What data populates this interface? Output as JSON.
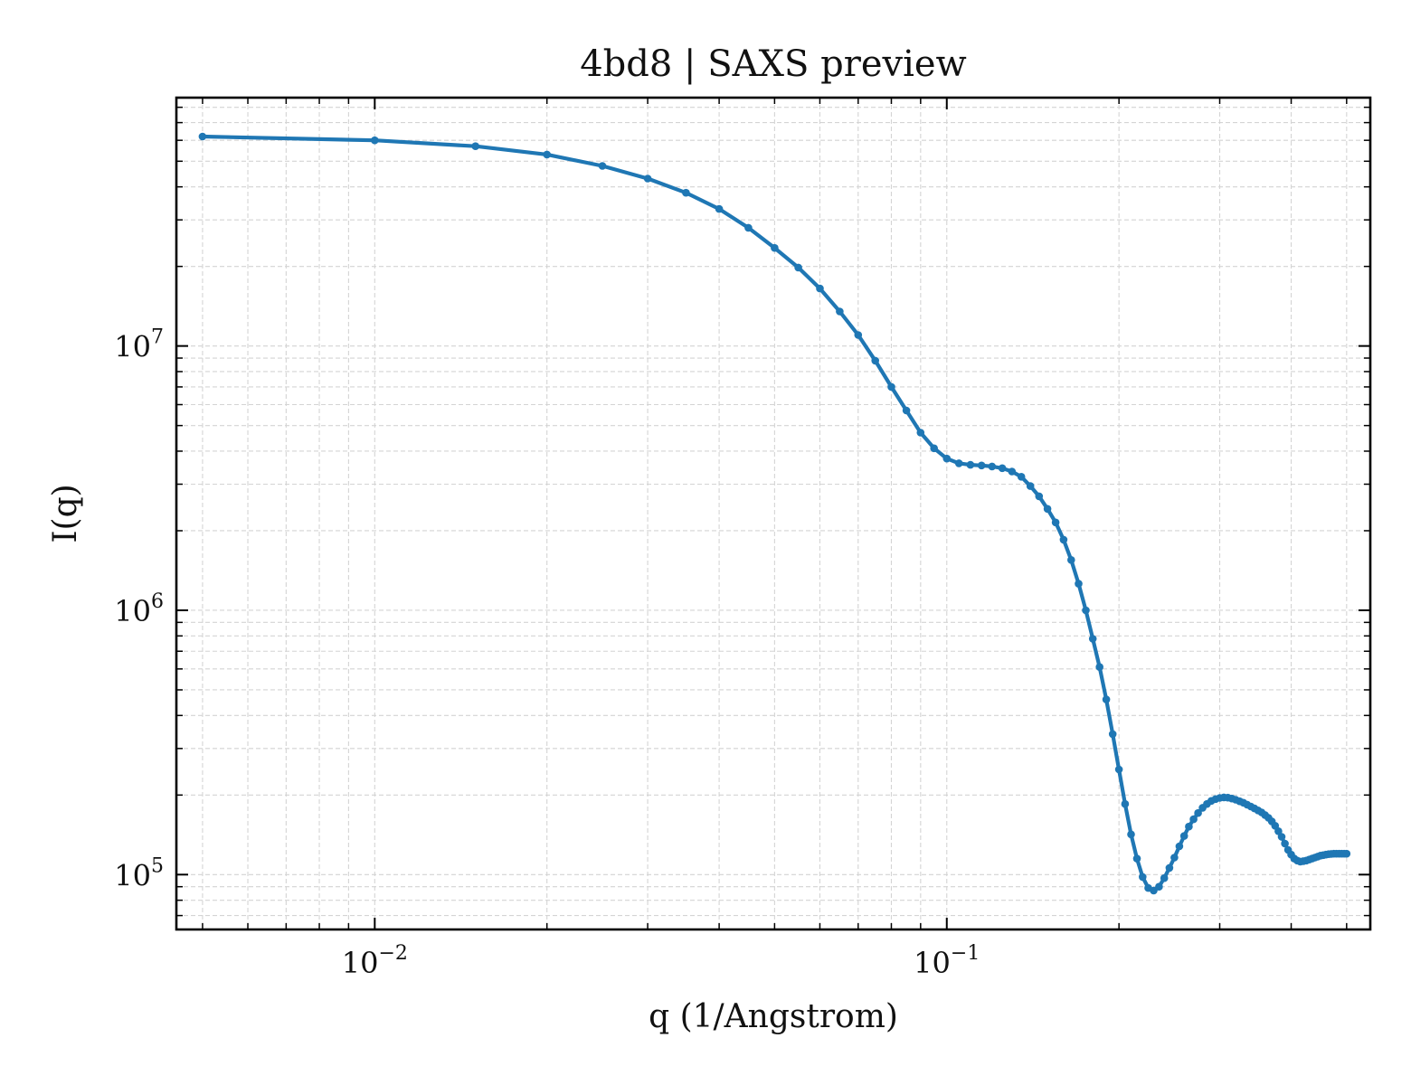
{
  "chart_data": {
    "type": "line",
    "title": "4bd8 | SAXS preview",
    "xlabel": "q (1/Angstrom)",
    "ylabel": "I(q)",
    "xscale": "log",
    "yscale": "log",
    "xlim": [
      0.0045,
      0.55
    ],
    "ylim": [
      62000,
      87000000
    ],
    "xticks": [
      {
        "value": 0.01,
        "base": "10",
        "exp": "−2"
      },
      {
        "value": 0.1,
        "base": "10",
        "exp": "−1"
      }
    ],
    "yticks": [
      {
        "value": 100000,
        "base": "10",
        "exp": "5"
      },
      {
        "value": 1000000,
        "base": "10",
        "exp": "6"
      },
      {
        "value": 10000000,
        "base": "10",
        "exp": "7"
      }
    ],
    "grid": true,
    "ticks_direction": "in",
    "series_color": "#1f77b4",
    "series": [
      {
        "x": [
          0.005,
          0.01,
          0.015,
          0.02,
          0.025,
          0.03,
          0.035,
          0.04,
          0.045,
          0.05,
          0.055,
          0.06,
          0.065,
          0.07,
          0.075,
          0.08,
          0.085,
          0.09,
          0.095,
          0.1,
          0.105,
          0.11,
          0.115,
          0.12,
          0.125,
          0.13,
          0.135,
          0.14,
          0.145,
          0.15,
          0.155,
          0.16,
          0.165,
          0.17,
          0.175,
          0.18,
          0.185,
          0.19,
          0.195,
          0.2,
          0.205,
          0.21,
          0.215,
          0.22,
          0.225,
          0.23,
          0.235,
          0.24,
          0.245,
          0.25,
          0.255,
          0.26,
          0.265,
          0.27,
          0.275,
          0.28,
          0.285,
          0.29,
          0.295,
          0.3,
          0.305,
          0.31,
          0.315,
          0.32,
          0.325,
          0.33,
          0.335,
          0.34,
          0.345,
          0.35,
          0.355,
          0.36,
          0.365,
          0.37,
          0.375,
          0.38,
          0.385,
          0.39,
          0.395,
          0.4,
          0.405,
          0.41,
          0.415,
          0.42,
          0.425,
          0.43,
          0.435,
          0.44,
          0.445,
          0.45,
          0.455,
          0.46,
          0.465,
          0.47,
          0.475,
          0.48,
          0.485,
          0.49,
          0.495,
          0.5
        ],
        "y": [
          62000000,
          60000000,
          57000000,
          53000000,
          48000000,
          43000000,
          38000000,
          33000000,
          28000000,
          23500000,
          19800000,
          16500000,
          13500000,
          11000000,
          8800000,
          7000000,
          5700000,
          4700000,
          4100000,
          3750000,
          3600000,
          3550000,
          3530000,
          3500000,
          3450000,
          3350000,
          3200000,
          2950000,
          2700000,
          2420000,
          2150000,
          1850000,
          1550000,
          1260000,
          1000000,
          780000,
          610000,
          460000,
          340000,
          250000,
          185000,
          142000,
          115000,
          98000,
          89000,
          87000,
          90000,
          97000,
          106000,
          116000,
          128000,
          140000,
          152000,
          162000,
          171000,
          179000,
          185000,
          190000,
          193000,
          195000,
          196000,
          195500,
          194000,
          192000,
          189500,
          187000,
          184000,
          181000,
          178000,
          175000,
          172000,
          168000,
          164000,
          159000,
          153000,
          146000,
          139000,
          131000,
          124000,
          119000,
          115000,
          113000,
          112000,
          112500,
          113000,
          114000,
          115000,
          116000,
          117000,
          118000,
          118500,
          119000,
          119500,
          119800,
          120000,
          120000,
          120000,
          120000,
          120000,
          120000
        ]
      }
    ]
  }
}
